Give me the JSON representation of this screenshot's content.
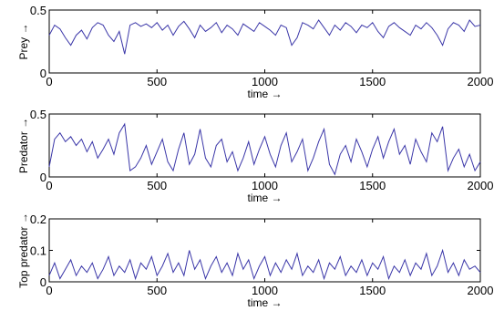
{
  "chart_data": [
    {
      "type": "line",
      "ylabel": "Prey →",
      "xlabel": "time →",
      "color": "#3a36a8",
      "xlim": [
        0,
        2000
      ],
      "xticks": [
        0,
        500,
        1000,
        1500,
        2000
      ],
      "ylim": [
        0,
        0.5
      ],
      "yticks": [
        0,
        0.5
      ],
      "x": [
        0,
        25,
        50,
        75,
        100,
        125,
        150,
        175,
        200,
        225,
        250,
        275,
        300,
        325,
        350,
        375,
        400,
        425,
        450,
        475,
        500,
        525,
        550,
        575,
        600,
        625,
        650,
        675,
        700,
        725,
        750,
        775,
        800,
        825,
        850,
        875,
        900,
        925,
        950,
        975,
        1000,
        1025,
        1050,
        1075,
        1100,
        1125,
        1150,
        1175,
        1200,
        1225,
        1250,
        1275,
        1300,
        1325,
        1350,
        1375,
        1400,
        1425,
        1450,
        1475,
        1500,
        1525,
        1550,
        1575,
        1600,
        1625,
        1650,
        1675,
        1700,
        1725,
        1750,
        1775,
        1800,
        1825,
        1850,
        1875,
        1900,
        1925,
        1950,
        1975,
        2000
      ],
      "values": [
        0.3,
        0.38,
        0.35,
        0.28,
        0.22,
        0.3,
        0.34,
        0.27,
        0.36,
        0.4,
        0.38,
        0.3,
        0.25,
        0.33,
        0.15,
        0.38,
        0.4,
        0.37,
        0.39,
        0.36,
        0.4,
        0.34,
        0.38,
        0.3,
        0.37,
        0.41,
        0.35,
        0.28,
        0.38,
        0.33,
        0.36,
        0.4,
        0.32,
        0.38,
        0.35,
        0.3,
        0.39,
        0.36,
        0.33,
        0.4,
        0.37,
        0.34,
        0.3,
        0.38,
        0.36,
        0.22,
        0.28,
        0.4,
        0.38,
        0.35,
        0.42,
        0.36,
        0.3,
        0.38,
        0.34,
        0.4,
        0.37,
        0.32,
        0.38,
        0.36,
        0.4,
        0.33,
        0.28,
        0.37,
        0.4,
        0.36,
        0.33,
        0.3,
        0.38,
        0.35,
        0.4,
        0.36,
        0.3,
        0.22,
        0.35,
        0.4,
        0.38,
        0.33,
        0.42,
        0.37,
        0.38
      ]
    },
    {
      "type": "line",
      "ylabel": "Predator →",
      "xlabel": "time →",
      "color": "#3a36a8",
      "xlim": [
        0,
        2000
      ],
      "xticks": [
        0,
        500,
        1000,
        1500,
        2000
      ],
      "ylim": [
        0,
        0.5
      ],
      "yticks": [
        0,
        0.5
      ],
      "x": [
        0,
        25,
        50,
        75,
        100,
        125,
        150,
        175,
        200,
        225,
        250,
        275,
        300,
        325,
        350,
        375,
        400,
        425,
        450,
        475,
        500,
        525,
        550,
        575,
        600,
        625,
        650,
        675,
        700,
        725,
        750,
        775,
        800,
        825,
        850,
        875,
        900,
        925,
        950,
        975,
        1000,
        1025,
        1050,
        1075,
        1100,
        1125,
        1150,
        1175,
        1200,
        1225,
        1250,
        1275,
        1300,
        1325,
        1350,
        1375,
        1400,
        1425,
        1450,
        1475,
        1500,
        1525,
        1550,
        1575,
        1600,
        1625,
        1650,
        1675,
        1700,
        1725,
        1750,
        1775,
        1800,
        1825,
        1850,
        1875,
        1900,
        1925,
        1950,
        1975,
        2000
      ],
      "values": [
        0.08,
        0.3,
        0.35,
        0.28,
        0.32,
        0.25,
        0.3,
        0.2,
        0.28,
        0.15,
        0.22,
        0.3,
        0.18,
        0.35,
        0.42,
        0.05,
        0.08,
        0.15,
        0.25,
        0.1,
        0.2,
        0.3,
        0.12,
        0.05,
        0.22,
        0.35,
        0.1,
        0.18,
        0.38,
        0.15,
        0.08,
        0.25,
        0.3,
        0.12,
        0.2,
        0.05,
        0.15,
        0.28,
        0.1,
        0.22,
        0.32,
        0.18,
        0.08,
        0.25,
        0.35,
        0.12,
        0.2,
        0.3,
        0.05,
        0.15,
        0.28,
        0.38,
        0.1,
        0.02,
        0.18,
        0.25,
        0.12,
        0.3,
        0.2,
        0.08,
        0.22,
        0.32,
        0.15,
        0.28,
        0.38,
        0.18,
        0.25,
        0.1,
        0.3,
        0.2,
        0.12,
        0.35,
        0.28,
        0.4,
        0.05,
        0.15,
        0.22,
        0.08,
        0.18,
        0.05,
        0.12
      ]
    },
    {
      "type": "line",
      "ylabel": "Top predator →",
      "xlabel": "time →",
      "color": "#3a36a8",
      "xlim": [
        0,
        2000
      ],
      "xticks": [
        0,
        500,
        1000,
        1500,
        2000
      ],
      "ylim": [
        0,
        0.2
      ],
      "yticks": [
        0,
        0.1,
        0.2
      ],
      "x": [
        0,
        25,
        50,
        75,
        100,
        125,
        150,
        175,
        200,
        225,
        250,
        275,
        300,
        325,
        350,
        375,
        400,
        425,
        450,
        475,
        500,
        525,
        550,
        575,
        600,
        625,
        650,
        675,
        700,
        725,
        750,
        775,
        800,
        825,
        850,
        875,
        900,
        925,
        950,
        975,
        1000,
        1025,
        1050,
        1075,
        1100,
        1125,
        1150,
        1175,
        1200,
        1225,
        1250,
        1275,
        1300,
        1325,
        1350,
        1375,
        1400,
        1425,
        1450,
        1475,
        1500,
        1525,
        1550,
        1575,
        1600,
        1625,
        1650,
        1675,
        1700,
        1725,
        1750,
        1775,
        1800,
        1825,
        1850,
        1875,
        1900,
        1925,
        1950,
        1975,
        2000
      ],
      "values": [
        0.02,
        0.06,
        0.01,
        0.04,
        0.07,
        0.02,
        0.05,
        0.03,
        0.06,
        0.01,
        0.04,
        0.08,
        0.02,
        0.05,
        0.03,
        0.07,
        0.01,
        0.06,
        0.04,
        0.08,
        0.02,
        0.05,
        0.09,
        0.03,
        0.06,
        0.02,
        0.1,
        0.04,
        0.07,
        0.01,
        0.05,
        0.08,
        0.03,
        0.06,
        0.02,
        0.09,
        0.04,
        0.07,
        0.01,
        0.05,
        0.08,
        0.02,
        0.06,
        0.03,
        0.07,
        0.04,
        0.09,
        0.02,
        0.05,
        0.03,
        0.07,
        0.01,
        0.06,
        0.04,
        0.08,
        0.02,
        0.05,
        0.03,
        0.07,
        0.02,
        0.06,
        0.04,
        0.08,
        0.01,
        0.05,
        0.03,
        0.07,
        0.02,
        0.06,
        0.04,
        0.09,
        0.02,
        0.05,
        0.1,
        0.03,
        0.06,
        0.02,
        0.07,
        0.04,
        0.05,
        0.03
      ]
    }
  ]
}
